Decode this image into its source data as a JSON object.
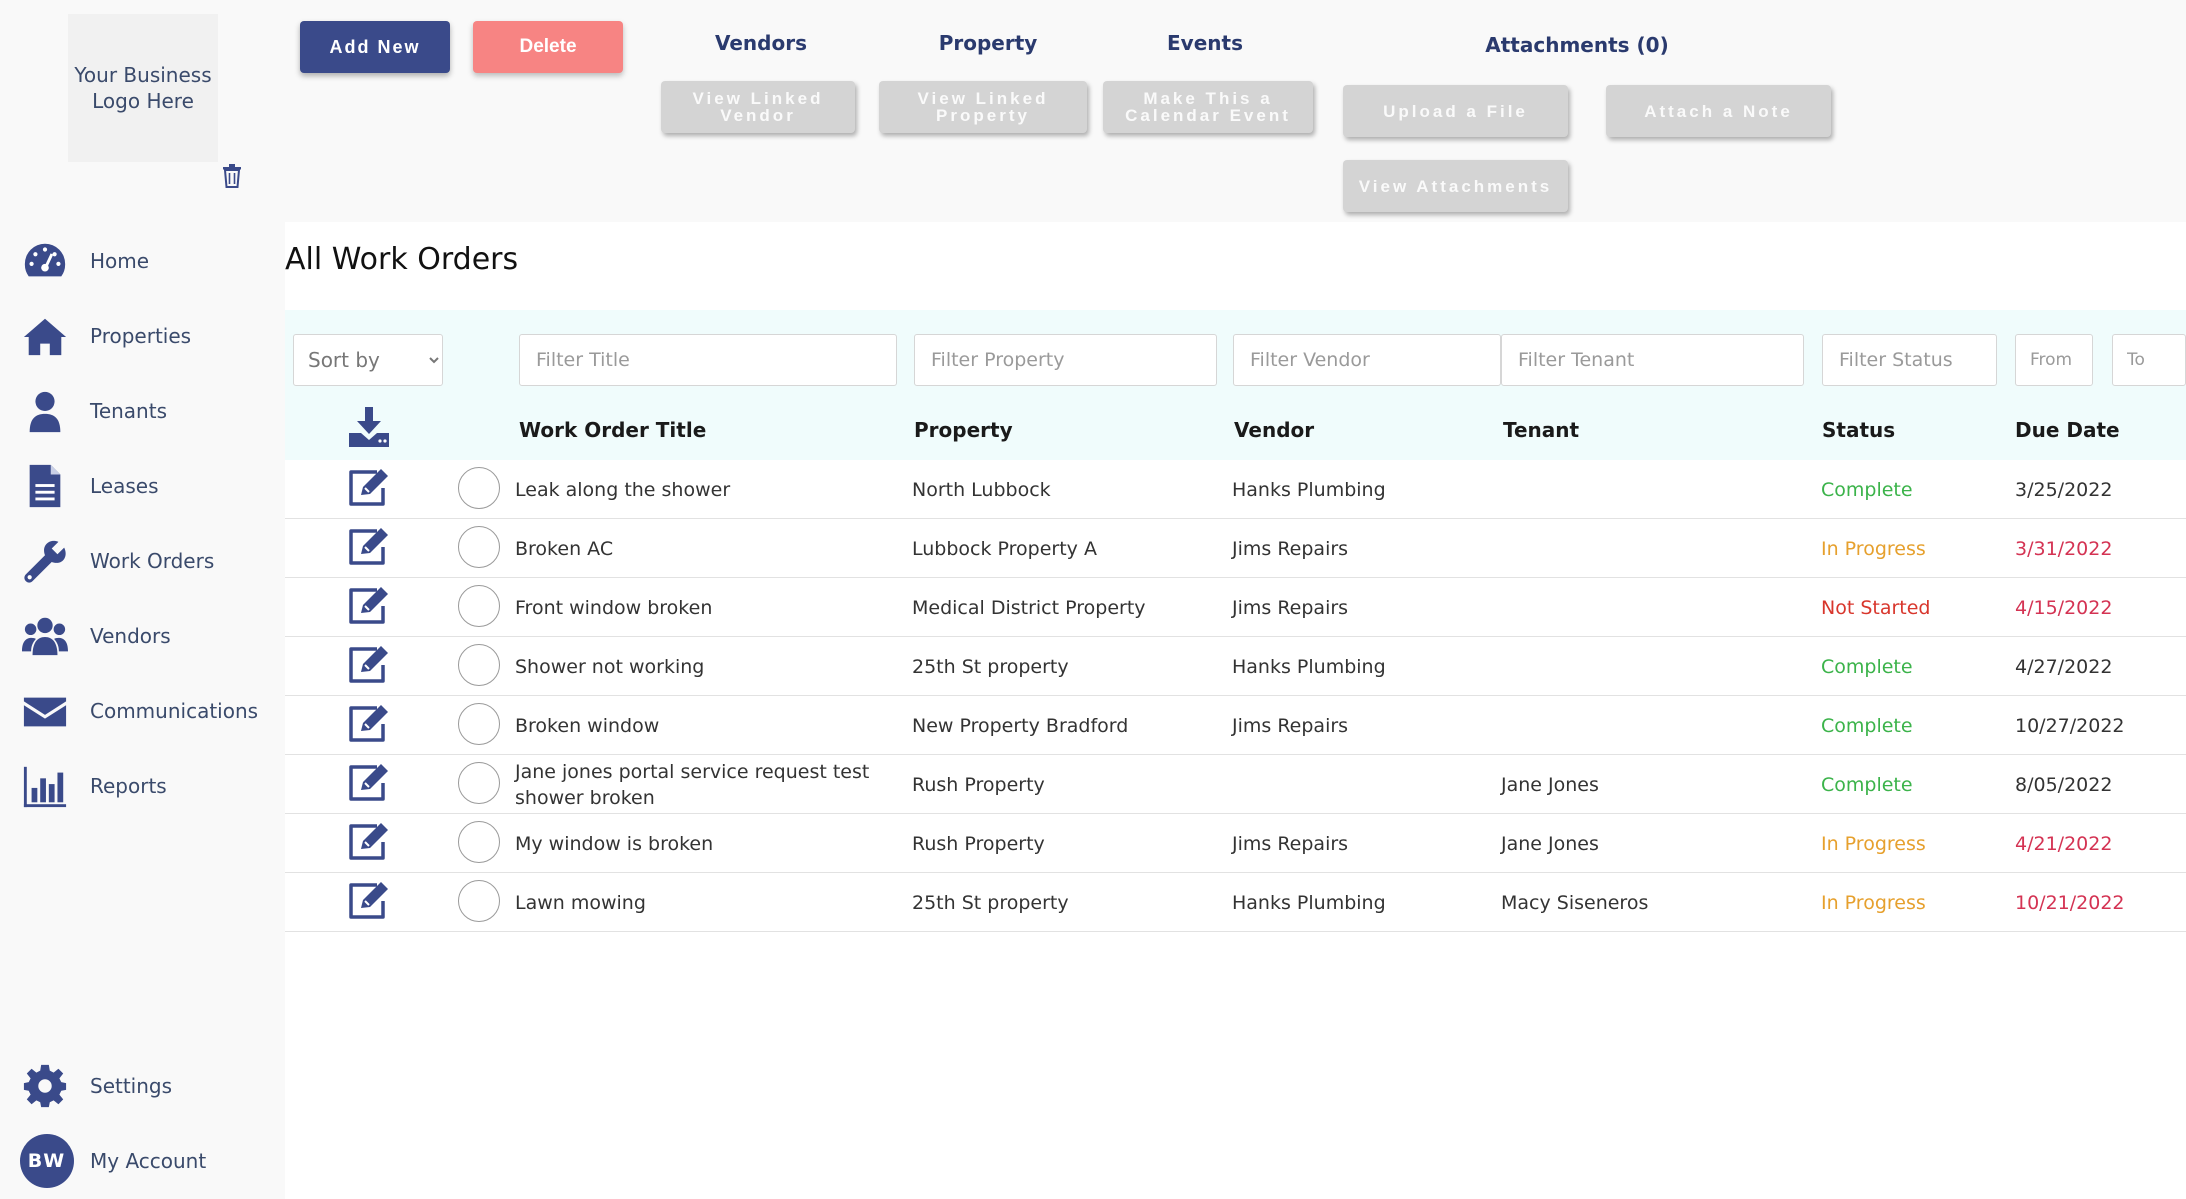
{
  "logo": {
    "text": "Your Business Logo Here"
  },
  "nav": {
    "items": [
      {
        "label": "Home",
        "icon": "dashboard-icon"
      },
      {
        "label": "Properties",
        "icon": "house-icon"
      },
      {
        "label": "Tenants",
        "icon": "user-icon"
      },
      {
        "label": "Leases",
        "icon": "document-icon"
      },
      {
        "label": "Work Orders",
        "icon": "wrench-icon"
      },
      {
        "label": "Vendors",
        "icon": "users-icon"
      },
      {
        "label": "Communications",
        "icon": "envelope-icon"
      },
      {
        "label": "Reports",
        "icon": "bar-chart-icon"
      }
    ],
    "settings_label": "Settings",
    "account_label": "My Account",
    "avatar_initials": "BW"
  },
  "toolbar": {
    "add_new": "Add New",
    "delete": "Delete",
    "vendors_title": "Vendors",
    "property_title": "Property",
    "events_title": "Events",
    "attachments_title": "Attachments (0)",
    "view_linked_vendor": "View Linked Vendor",
    "view_linked_property": "View Linked Property",
    "make_calendar_event": "Make This a Calendar Event",
    "upload_file": "Upload a File",
    "attach_note": "Attach a Note",
    "view_attachments": "View Attachments"
  },
  "page": {
    "title": "All Work Orders"
  },
  "filters": {
    "sort_by": "Sort by",
    "title": "Filter Title",
    "property": "Filter Property",
    "vendor": "Filter Vendor",
    "tenant": "Filter Tenant",
    "status": "Filter Status",
    "from": "From",
    "to": "To"
  },
  "columns": {
    "title": "Work Order Title",
    "property": "Property",
    "vendor": "Vendor",
    "tenant": "Tenant",
    "status": "Status",
    "due_date": "Due Date"
  },
  "colors": {
    "primary": "#3a4a8a",
    "danger": "#f78483",
    "complete": "#3bb34a",
    "in_progress": "#e6a02d",
    "not_started": "#d8362c",
    "overdue": "#d43353"
  },
  "rows": [
    {
      "title": "Leak along the shower",
      "property": "North Lubbock",
      "vendor": "Hanks Plumbing",
      "tenant": "",
      "status": "Complete",
      "due": "3/25/2022"
    },
    {
      "title": "Broken AC",
      "property": "Lubbock Property A",
      "vendor": "Jims Repairs",
      "tenant": "",
      "status": "In Progress",
      "due": "3/31/2022"
    },
    {
      "title": "Front window broken",
      "property": "Medical District Property",
      "vendor": "Jims Repairs",
      "tenant": "",
      "status": "Not Started",
      "due": "4/15/2022"
    },
    {
      "title": "Shower not working",
      "property": "25th St property",
      "vendor": "Hanks Plumbing",
      "tenant": "",
      "status": "Complete",
      "due": "4/27/2022"
    },
    {
      "title": "Broken window",
      "property": "New Property Bradford",
      "vendor": "Jims Repairs",
      "tenant": "",
      "status": "Complete",
      "due": "10/27/2022"
    },
    {
      "title": "Jane jones portal service request test shower broken",
      "property": "Rush Property",
      "vendor": "",
      "tenant": "Jane Jones",
      "status": "Complete",
      "due": "8/05/2022"
    },
    {
      "title": "My window is broken",
      "property": "Rush Property",
      "vendor": "Jims Repairs",
      "tenant": "Jane Jones",
      "status": "In Progress",
      "due": "4/21/2022"
    },
    {
      "title": "Lawn mowing",
      "property": "25th St property",
      "vendor": "Hanks Plumbing",
      "tenant": "Macy Siseneros",
      "status": "In Progress",
      "due": "10/21/2022"
    }
  ]
}
